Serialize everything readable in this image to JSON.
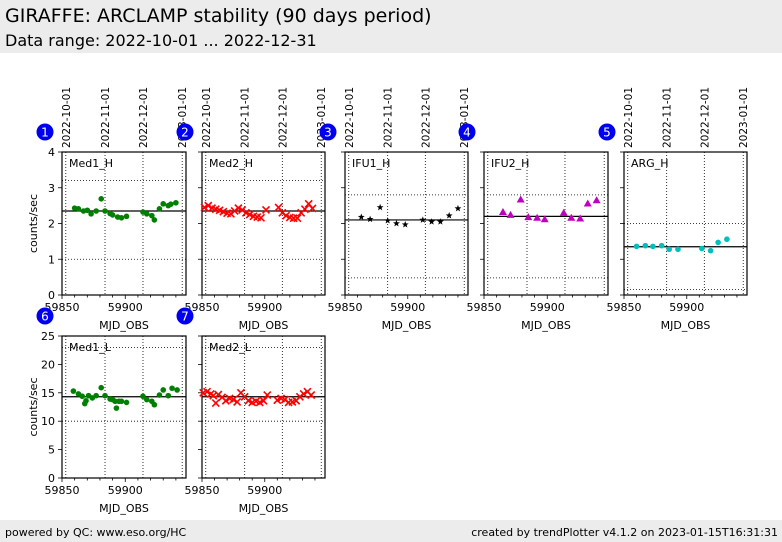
{
  "header": {
    "title": "GIRAFFE: ARCLAMP stability (90 days period)",
    "subtitle": "Data range: 2022-10-01 ... 2022-12-31"
  },
  "footer": {
    "left": "powered by QC: www.eso.org/HC",
    "right": "created by trendPlotter v4.1.2 on 2023-01-15T16:31:31"
  },
  "colors": {
    "badge": "#0000ee",
    "green": "#008000",
    "red": "#ff0000",
    "black": "#000000",
    "magenta": "#c000c0",
    "cyan": "#00bfbf"
  },
  "chart_data": [
    {
      "type": "scatter",
      "badge": "1",
      "label": "Med1_H",
      "marker": "circle",
      "color": "#008000",
      "xlabel": "MJD_OBS",
      "ylabel": "counts/sec",
      "show_yticklabels": true,
      "show_dates": true,
      "xlim": [
        59850,
        59948
      ],
      "ylim": [
        0,
        4
      ],
      "xticks": [
        "59850",
        "59900"
      ],
      "yticks": [
        "0",
        "1",
        "2",
        "3",
        "4"
      ],
      "date_labels": [
        "2022-10-01",
        "2022-11-01",
        "2022-12-01",
        "2023-01-01"
      ],
      "date_mjd": [
        59853,
        59884,
        59914,
        59945
      ],
      "mean": 2.35,
      "limits": [
        1.0,
        3.2
      ],
      "x": [
        59860,
        59863,
        59867,
        59870,
        59873,
        59877,
        59881,
        59884,
        59888,
        59890,
        59894,
        59897,
        59901,
        59914,
        59917,
        59921,
        59923,
        59927,
        59930,
        59934,
        59936,
        59940
      ],
      "y": [
        2.43,
        2.41,
        2.35,
        2.37,
        2.27,
        2.35,
        2.69,
        2.35,
        2.28,
        2.24,
        2.18,
        2.16,
        2.2,
        2.32,
        2.27,
        2.22,
        2.1,
        2.41,
        2.55,
        2.5,
        2.54,
        2.58
      ]
    },
    {
      "type": "scatter",
      "badge": "2",
      "label": "Med2_H",
      "marker": "x",
      "color": "#ff0000",
      "xlabel": "MJD_OBS",
      "ylabel": "",
      "show_yticklabels": false,
      "show_dates": true,
      "xlim": [
        59850,
        59948
      ],
      "ylim": [
        0,
        4
      ],
      "xticks": [
        "59850",
        "59900"
      ],
      "yticks": [
        "0",
        "1",
        "2",
        "3",
        "4"
      ],
      "date_labels": [
        "2022-10-01",
        "2022-11-01",
        "2022-12-01",
        "2023-01-01"
      ],
      "date_mjd": [
        59853,
        59884,
        59914,
        59945
      ],
      "mean": 2.35,
      "limits": [
        1.0,
        3.2
      ],
      "x": [
        59852,
        59855,
        59858,
        59861,
        59864,
        59867,
        59870,
        59873,
        59876,
        59879,
        59882,
        59885,
        59888,
        59891,
        59894,
        59897,
        59901,
        59911,
        59914,
        59917,
        59920,
        59923,
        59926,
        59929,
        59932,
        59935,
        59938
      ],
      "y": [
        2.45,
        2.5,
        2.43,
        2.4,
        2.37,
        2.33,
        2.29,
        2.27,
        2.35,
        2.43,
        2.38,
        2.3,
        2.25,
        2.2,
        2.18,
        2.16,
        2.38,
        2.45,
        2.3,
        2.22,
        2.17,
        2.15,
        2.15,
        2.3,
        2.4,
        2.55,
        2.42
      ]
    },
    {
      "type": "scatter",
      "badge": "3",
      "label": "IFU1_H",
      "marker": "star",
      "color": "#000000",
      "xlabel": "MJD_OBS",
      "ylabel": "",
      "show_yticklabels": false,
      "show_dates": true,
      "xlim": [
        59850,
        59948
      ],
      "ylim": [
        0,
        4
      ],
      "xticks": [
        "59850",
        "59900"
      ],
      "yticks": [
        "0",
        "1",
        "2",
        "3",
        "4"
      ],
      "date_labels": [
        "2022-10-01",
        "2022-11-01",
        "2022-12-01",
        "2023-01-01"
      ],
      "date_mjd": [
        59853,
        59884,
        59914,
        59945
      ],
      "mean": 2.1,
      "limits": [
        0.48,
        2.8
      ],
      "x": [
        59863,
        59870,
        59878,
        59884,
        59891,
        59898,
        59912,
        59919,
        59926,
        59933,
        59940
      ],
      "y": [
        2.18,
        2.12,
        2.45,
        2.08,
        2.0,
        1.97,
        2.1,
        2.05,
        2.05,
        2.22,
        2.42
      ]
    },
    {
      "type": "scatter",
      "badge": "4",
      "label": "IFU2_H",
      "marker": "triangle",
      "color": "#c000c0",
      "xlabel": "MJD_OBS",
      "ylabel": "",
      "show_yticklabels": false,
      "show_dates": false,
      "xlim": [
        59850,
        59948
      ],
      "ylim": [
        0,
        4
      ],
      "xticks": [
        "59850",
        "59900"
      ],
      "yticks": [
        "0",
        "1",
        "2",
        "3",
        "4"
      ],
      "date_labels": [],
      "date_mjd": [
        59853,
        59884,
        59914,
        59945
      ],
      "mean": 2.2,
      "limits": [
        0.48,
        2.8
      ],
      "x": [
        59865,
        59871,
        59879,
        59885,
        59892,
        59898,
        59913,
        59919,
        59926,
        59932,
        59939
      ],
      "y": [
        2.32,
        2.24,
        2.67,
        2.18,
        2.16,
        2.12,
        2.3,
        2.16,
        2.14,
        2.56,
        2.65
      ]
    },
    {
      "type": "scatter",
      "badge": "5",
      "label": "ARG_H",
      "marker": "circle",
      "color": "#00bfbf",
      "xlabel": "MJD_OBS",
      "ylabel": "",
      "show_yticklabels": false,
      "show_dates": true,
      "xlim": [
        59850,
        59948
      ],
      "ylim": [
        0,
        4
      ],
      "xticks": [
        "59850",
        "59900"
      ],
      "yticks": [
        "0",
        "1",
        "2",
        "3",
        "4"
      ],
      "date_labels": [
        "2022-10-01",
        "2022-11-01",
        "2022-12-01",
        "2023-01-01"
      ],
      "date_mjd": [
        59853,
        59884,
        59914,
        59945
      ],
      "mean": 1.35,
      "limits": [
        0.15,
        2.0
      ],
      "x": [
        59860,
        59867,
        59873,
        59880,
        59886,
        59893,
        59912,
        59919,
        59925,
        59932
      ],
      "y": [
        1.36,
        1.38,
        1.36,
        1.38,
        1.28,
        1.28,
        1.3,
        1.24,
        1.47,
        1.56
      ]
    },
    {
      "type": "scatter",
      "badge": "6",
      "label": "Med1_L",
      "marker": "circle",
      "color": "#008000",
      "xlabel": "MJD_OBS",
      "ylabel": "counts/sec",
      "show_yticklabels": true,
      "show_dates": false,
      "xlim": [
        59850,
        59948
      ],
      "ylim": [
        0,
        25
      ],
      "xticks": [
        "59850",
        "59900"
      ],
      "yticks": [
        "0",
        "5",
        "10",
        "15",
        "20",
        "25"
      ],
      "date_labels": [],
      "date_mjd": [
        59853,
        59884,
        59914,
        59945
      ],
      "mean": 14.3,
      "limits": [
        10.0,
        23.0
      ],
      "x": [
        59859,
        59863,
        59866,
        59868,
        59869,
        59871,
        59874,
        59877,
        59881,
        59884,
        59888,
        59890,
        59892,
        59893,
        59895,
        59897,
        59901,
        59914,
        59917,
        59921,
        59923,
        59927,
        59930,
        59934,
        59937,
        59941
      ],
      "y": [
        15.3,
        14.8,
        14.4,
        13.1,
        13.6,
        14.5,
        14.1,
        14.5,
        15.9,
        14.5,
        13.9,
        13.8,
        13.5,
        12.3,
        13.5,
        13.5,
        13.3,
        14.4,
        13.8,
        13.5,
        12.9,
        14.6,
        15.5,
        14.5,
        15.8,
        15.5
      ]
    },
    {
      "type": "scatter",
      "badge": "7",
      "label": "Med2_L",
      "marker": "x",
      "color": "#ff0000",
      "xlabel": "MJD_OBS",
      "ylabel": "",
      "show_yticklabels": false,
      "show_dates": false,
      "xlim": [
        59850,
        59948
      ],
      "ylim": [
        0,
        25
      ],
      "xticks": [
        "59850",
        "59900"
      ],
      "yticks": [
        "0",
        "5",
        "10",
        "15",
        "20",
        "25"
      ],
      "date_labels": [],
      "date_mjd": [
        59853,
        59884,
        59914,
        59945
      ],
      "mean": 14.3,
      "limits": [
        10.0,
        23.0
      ],
      "x": [
        59851,
        59854,
        59857,
        59859,
        59861,
        59863,
        59866,
        59869,
        59872,
        59875,
        59878,
        59881,
        59884,
        59887,
        59890,
        59893,
        59896,
        59899,
        59902,
        59910,
        59913,
        59916,
        59919,
        59922,
        59925,
        59928,
        59931,
        59934,
        59937
      ],
      "y": [
        15.0,
        15.2,
        14.8,
        14.5,
        13.2,
        14.7,
        14.2,
        13.6,
        14.0,
        13.8,
        13.4,
        15.0,
        14.3,
        13.6,
        13.3,
        13.5,
        13.3,
        13.6,
        14.6,
        13.7,
        14.0,
        13.8,
        13.3,
        13.4,
        13.6,
        14.3,
        14.8,
        15.2,
        14.6
      ]
    }
  ]
}
